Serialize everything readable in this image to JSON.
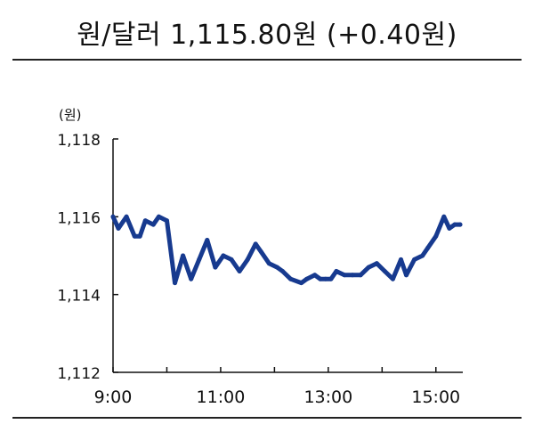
{
  "header": {
    "title": "원/달러 1,115.80원 (+0.40원)"
  },
  "chart_data": {
    "type": "line",
    "title": "원/달러 1,115.80원 (+0.40원)",
    "xlabel": "",
    "ylabel": "(원)",
    "ylim": [
      1112,
      1118
    ],
    "yticks": [
      1112,
      1114,
      1116,
      1118
    ],
    "ytick_labels": [
      "1,112",
      "1,114",
      "1,116",
      "1,118"
    ],
    "xlim": [
      9.0,
      15.5
    ],
    "xticks": [
      9,
      11,
      13,
      15
    ],
    "xtick_labels": [
      "9:00",
      "11:00",
      "13:00",
      "15:00"
    ],
    "grid": false,
    "line_color": "#173a8f",
    "series": [
      {
        "x": [
          9.0,
          9.1,
          9.25,
          9.4,
          9.5,
          9.6,
          9.75,
          9.85,
          10.0,
          10.15,
          10.3,
          10.45,
          10.6,
          10.75,
          10.9,
          11.05,
          11.2,
          11.35,
          11.5,
          11.65,
          11.75,
          11.9,
          12.05,
          12.15,
          12.3,
          12.5,
          12.6,
          12.75,
          12.85,
          12.95,
          13.05,
          13.15,
          13.3,
          13.45,
          13.6,
          13.75,
          13.9,
          14.05,
          14.2,
          14.35,
          14.45,
          14.6,
          14.75,
          14.85,
          15.0,
          15.15,
          15.25,
          15.35,
          15.45
        ],
        "y": [
          1116.0,
          1115.7,
          1116.0,
          1115.5,
          1115.5,
          1115.9,
          1115.8,
          1116.0,
          1115.9,
          1114.3,
          1115.0,
          1114.4,
          1114.9,
          1115.4,
          1114.7,
          1115.0,
          1114.9,
          1114.6,
          1114.9,
          1115.3,
          1115.1,
          1114.8,
          1114.7,
          1114.6,
          1114.4,
          1114.3,
          1114.4,
          1114.5,
          1114.4,
          1114.4,
          1114.4,
          1114.6,
          1114.5,
          1114.5,
          1114.5,
          1114.7,
          1114.8,
          1114.6,
          1114.4,
          1114.9,
          1114.5,
          1114.9,
          1115.0,
          1115.2,
          1115.5,
          1116.0,
          1115.7,
          1115.8,
          1115.8
        ]
      }
    ]
  }
}
